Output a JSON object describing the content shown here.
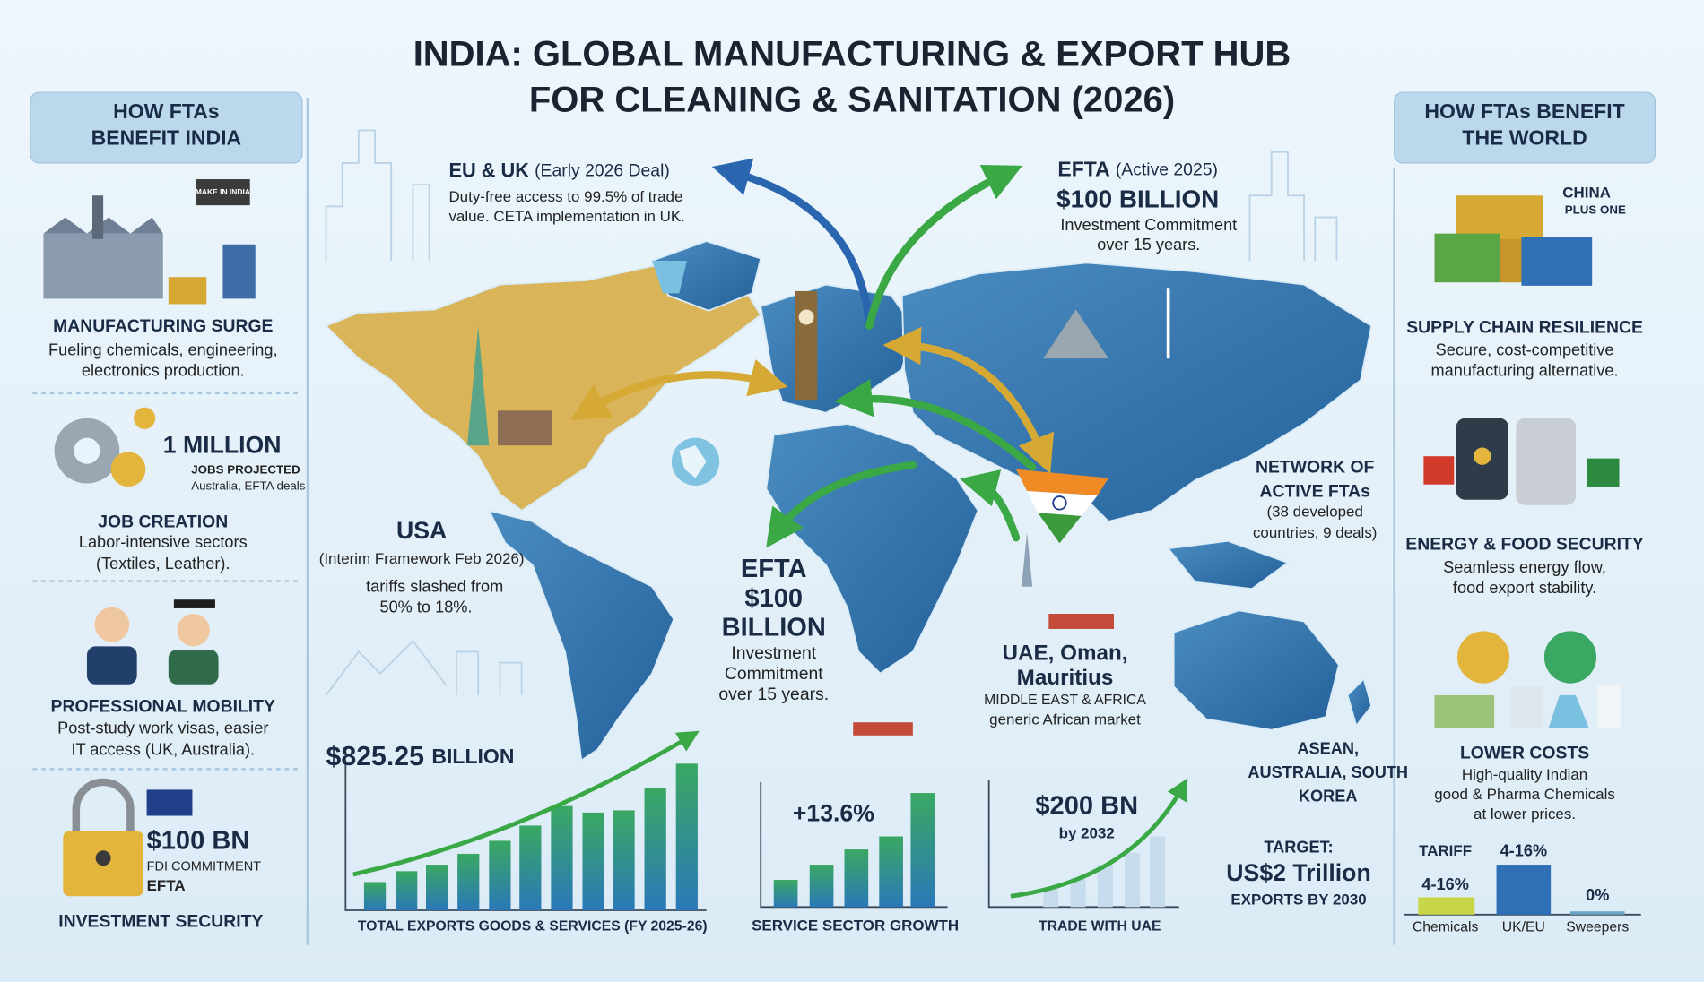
{
  "title": [
    "INDIA: GLOBAL MANUFACTURING & EXPORT HUB",
    "FOR CLEANING & SANITATION (2026)"
  ],
  "left_panel": {
    "heading": [
      "HOW FTAs",
      "BENEFIT INDIA"
    ],
    "icon_label": "MAKE IN INDIA",
    "manufacturing": {
      "title": "MANUFACTURING SURGE",
      "text": [
        "Fueling chemicals, engineering,",
        "electronics production."
      ]
    },
    "jobs": {
      "stat": "1 MILLION",
      "stat_sub": "JOBS PROJECTED",
      "note": "Australia, EFTA deals",
      "title": "JOB CREATION",
      "text": [
        "Labor-intensive sectors",
        "(Textiles, Leather)."
      ]
    },
    "mobility": {
      "title": "PROFESSIONAL MOBILITY",
      "text": [
        "Post-study work visas, easier",
        "IT access (UK, Australia)."
      ]
    },
    "investment": {
      "stat": "$100 BN",
      "stat_sub": "FDI COMMITMENT",
      "note": "EFTA",
      "title": "INVESTMENT SECURITY"
    }
  },
  "right_panel": {
    "heading": [
      "HOW FTAs BENEFIT",
      "THE WORLD"
    ],
    "supply": {
      "icon_label": [
        "CHINA",
        "PLUS ONE"
      ],
      "title": "SUPPLY CHAIN RESILIENCE",
      "text": [
        "Secure, cost-competitive",
        "manufacturing alternative."
      ]
    },
    "energy": {
      "title": "ENERGY & FOOD SECURITY",
      "text": [
        "Seamless energy flow,",
        "food export stability."
      ]
    },
    "costs": {
      "title": "LOWER COSTS",
      "text": [
        "High-quality Indian",
        "good & Pharma Chemicals",
        "at lower prices."
      ]
    },
    "tariff": {
      "title": "TARIFF",
      "bars": [
        {
          "label": "Chemicals",
          "value_label": "4-16%"
        },
        {
          "label": "UK/EU",
          "value_label": "4-16%"
        },
        {
          "label": "Sweepers",
          "value_label": "0%"
        }
      ]
    }
  },
  "map": {
    "eu_uk": {
      "title": "EU & UK",
      "note": "(Early 2026 Deal)",
      "text": [
        "Duty-free access to 99.5% of trade",
        "value. CETA implementation in UK."
      ]
    },
    "efta_top": {
      "title": "EFTA",
      "note": "(Active 2025)",
      "stat": "$100 BILLION",
      "text": [
        "Investment Commitment",
        "over 15 years."
      ]
    },
    "network": {
      "title": [
        "NETWORK OF",
        "ACTIVE FTAs"
      ],
      "text": [
        "(38 developed",
        "countries, 9 deals)"
      ]
    },
    "usa": {
      "title": "USA",
      "note": "(Interim Framework Feb 2026)",
      "text": [
        "tariffs slashed from",
        "50% to 18%."
      ]
    },
    "efta_mid": {
      "title": [
        "EFTA",
        "$100",
        "BILLION"
      ],
      "text": [
        "Investment",
        "Commitment",
        "over 15 years."
      ]
    },
    "uae": {
      "title": [
        "UAE, Oman,",
        "Mauritius"
      ],
      "text": [
        "MIDDLE EAST & AFRICA",
        "generic African market"
      ]
    },
    "asean": {
      "title": [
        "ASEAN,",
        "AUSTRALIA, SOUTH",
        "KOREA"
      ]
    },
    "target": {
      "label": "TARGET:",
      "stat": "US$2 Trillion",
      "text": "EXPORTS BY 2030"
    }
  },
  "charts": {
    "exports": {
      "stat": "$825.25",
      "unit": "BILLION",
      "caption": "TOTAL EXPORTS GOODS & SERVICES (FY 2025-26)"
    },
    "services": {
      "stat": "+13.6%",
      "caption": "SERVICE SECTOR GROWTH"
    },
    "uae_trade": {
      "stat": "$200 BN",
      "note": "by 2032",
      "caption": "TRADE WITH UAE"
    }
  }
}
